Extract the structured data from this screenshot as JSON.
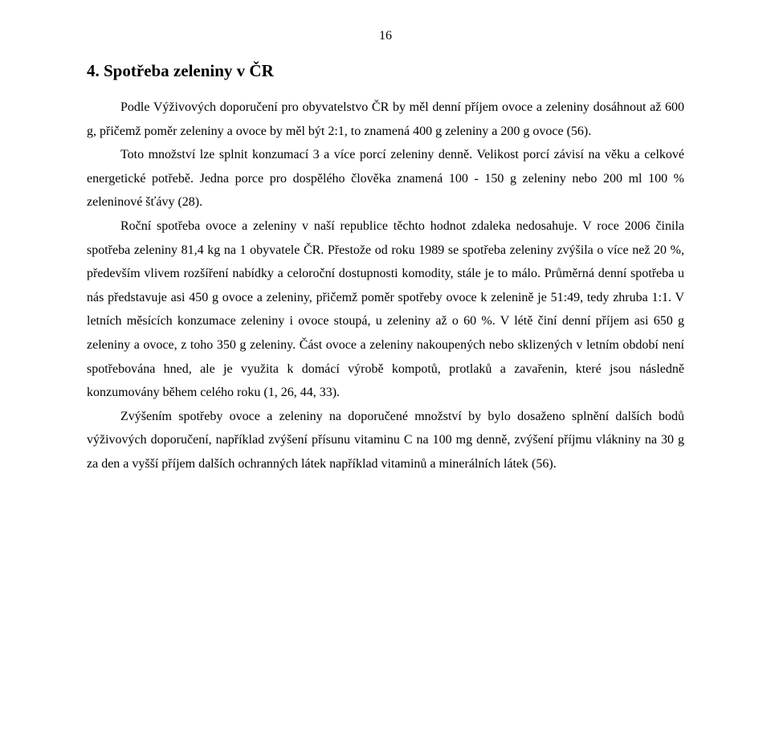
{
  "page_number": "16",
  "heading": "4. Spotřeba zeleniny v ČR",
  "p1": "Podle Výživových doporučení pro obyvatelstvo ČR by měl denní příjem ovoce a zeleniny dosáhnout až 600 g, přičemž poměr zeleniny a ovoce by měl být 2:1, to znamená 400 g zeleniny a 200 g ovoce (56).",
  "p2": "Toto množství lze splnit konzumací 3 a více porcí zeleniny denně. Velikost porcí závisí na věku a celkové energetické potřebě. Jedna porce pro dospělého člověka znamená 100 - 150 g zeleniny nebo 200 ml 100 % zeleninové šťávy (28).",
  "p3": "Roční spotřeba ovoce a zeleniny v naší republice těchto hodnot zdaleka nedosahuje. V roce 2006 činila spotřeba zeleniny 81,4 kg na 1 obyvatele ČR. Přestože od roku 1989 se spotřeba zeleniny zvýšila o více než 20 %, především vlivem rozšíření nabídky a celoroční dostupnosti komodity, stále je to málo. Průměrná denní spotřeba u nás představuje asi 450 g ovoce a zeleniny, přičemž poměr spotřeby ovoce k zelenině je 51:49, tedy zhruba 1:1. V letních měsících konzumace zeleniny i ovoce stoupá, u zeleniny až o 60 %. V létě činí denní příjem asi 650 g zeleniny a ovoce, z toho 350 g zeleniny. Část ovoce a zeleniny nakoupených nebo sklizených v letním období není spotřebována hned, ale je využita k domácí výrobě kompotů, protlaků a zavařenin, které jsou následně konzumovány během celého roku (1, 26, 44, 33).",
  "p4": "Zvýšením spotřeby ovoce a zeleniny na doporučené množství by bylo dosaženo splnění dalších bodů výživových doporučení, například zvýšení přísunu vitaminu C na 100 mg denně, zvýšení příjmu vlákniny na 30 g za den a vyšší příjem dalších ochranných látek například vitaminů a minerálních látek (56)."
}
